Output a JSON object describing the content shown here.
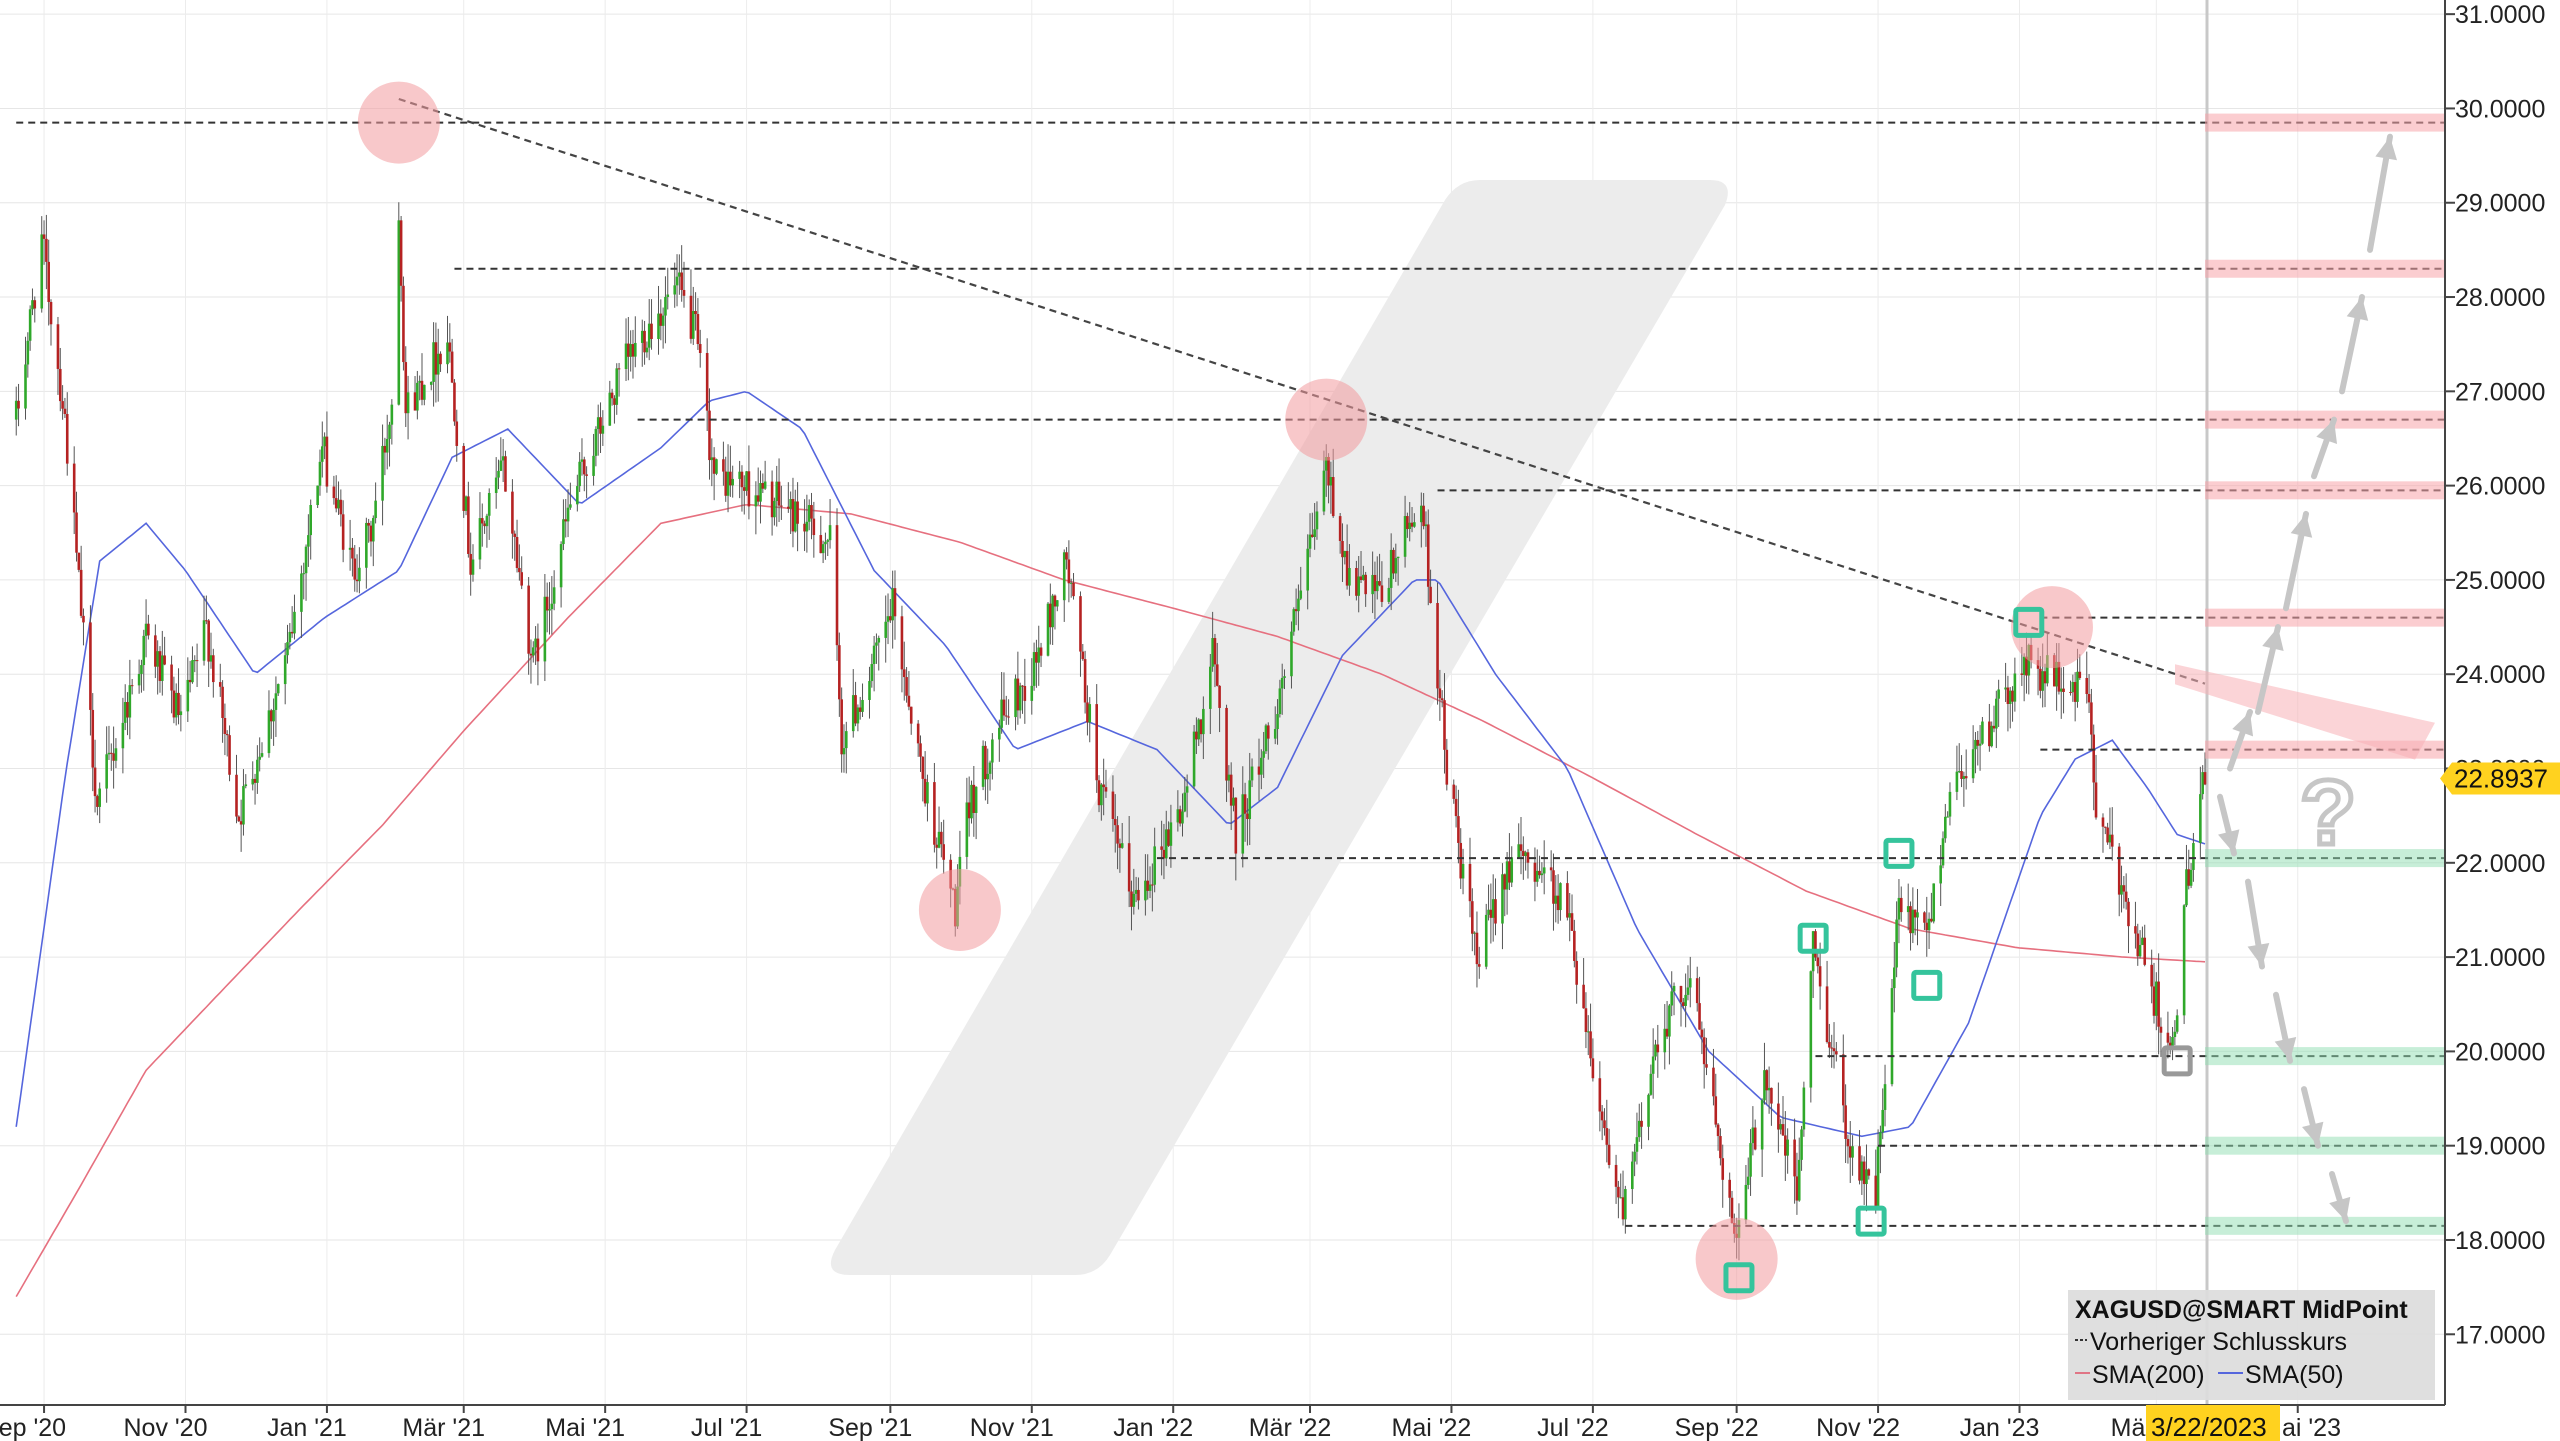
{
  "chart_data": {
    "type": "candlestick",
    "symbol": "XAGUSD@SMART MidPoint",
    "last_price": 22.8937,
    "last_price_label": "22.8937",
    "current_date_label": "3/22/2023",
    "y_range": [
      16.25,
      31.15
    ],
    "y_ticks": [
      "17.0000",
      "18.0000",
      "19.0000",
      "20.0000",
      "21.0000",
      "22.0000",
      "23.0000",
      "24.0000",
      "25.0000",
      "26.0000",
      "27.0000",
      "28.0000",
      "29.0000",
      "30.0000",
      "31.0000"
    ],
    "x_ticks": [
      "Sep '20",
      "Nov '20",
      "Jan '21",
      "Mär '21",
      "Mai '21",
      "Jul '21",
      "Sep '21",
      "Nov '21",
      "Jan '22",
      "Mär '22",
      "Mai '22",
      "Jul '22",
      "Sep '22",
      "Nov '22",
      "Jan '23",
      "Mä",
      "ai '23"
    ],
    "legend": {
      "title": "XAGUSD@SMART MidPoint",
      "prev_close": "Vorheriger Schlusskurs",
      "sma200": "SMA(200)",
      "sma50": "SMA(50)"
    },
    "price_anchors": [
      [
        "2020-08-20",
        26.7
      ],
      [
        "2020-08-31",
        28.6
      ],
      [
        "2020-09-10",
        26.7
      ],
      [
        "2020-09-24",
        22.6
      ],
      [
        "2020-10-15",
        24.4
      ],
      [
        "2020-10-30",
        23.5
      ],
      [
        "2020-11-10",
        24.5
      ],
      [
        "2020-11-24",
        22.5
      ],
      [
        "2020-12-15",
        24.2
      ],
      [
        "2020-12-30",
        26.4
      ],
      [
        "2021-01-12",
        25.1
      ],
      [
        "2021-01-20",
        25.5
      ],
      [
        "2021-01-29",
        26.9
      ],
      [
        "2021-02-01",
        29.0
      ],
      [
        "2021-02-04",
        26.8
      ],
      [
        "2021-02-22",
        27.6
      ],
      [
        "2021-03-04",
        25.2
      ],
      [
        "2021-03-18",
        26.2
      ],
      [
        "2021-03-31",
        24.1
      ],
      [
        "2021-04-16",
        25.8
      ],
      [
        "2021-05-10",
        27.3
      ],
      [
        "2021-05-20",
        27.7
      ],
      [
        "2021-06-01",
        28.1
      ],
      [
        "2021-06-09",
        27.6
      ],
      [
        "2021-06-17",
        26.1
      ],
      [
        "2021-06-30",
        26.0
      ],
      [
        "2021-07-16",
        25.8
      ],
      [
        "2021-08-06",
        25.4
      ],
      [
        "2021-08-11",
        23.3
      ],
      [
        "2021-08-25",
        24.1
      ],
      [
        "2021-09-02",
        24.7
      ],
      [
        "2021-09-15",
        22.9
      ],
      [
        "2021-09-29",
        21.5
      ],
      [
        "2021-10-05",
        22.6
      ],
      [
        "2021-10-18",
        23.5
      ],
      [
        "2021-11-01",
        24.0
      ],
      [
        "2021-11-16",
        25.2
      ],
      [
        "2021-11-30",
        22.8
      ],
      [
        "2021-12-15",
        21.6
      ],
      [
        "2022-01-05",
        22.6
      ],
      [
        "2022-01-18",
        24.2
      ],
      [
        "2022-01-28",
        22.3
      ],
      [
        "2022-02-15",
        23.7
      ],
      [
        "2022-03-01",
        25.3
      ],
      [
        "2022-03-08",
        26.2
      ],
      [
        "2022-03-18",
        25.0
      ],
      [
        "2022-03-31",
        24.8
      ],
      [
        "2022-04-18",
        25.9
      ],
      [
        "2022-04-29",
        23.0
      ],
      [
        "2022-05-12",
        20.9
      ],
      [
        "2022-05-25",
        22.0
      ],
      [
        "2022-06-08",
        22.0
      ],
      [
        "2022-06-20",
        21.5
      ],
      [
        "2022-07-05",
        19.3
      ],
      [
        "2022-07-14",
        18.2
      ],
      [
        "2022-07-29",
        20.2
      ],
      [
        "2022-08-12",
        20.8
      ],
      [
        "2022-08-25",
        19.0
      ],
      [
        "2022-09-01",
        17.9
      ],
      [
        "2022-09-13",
        19.8
      ],
      [
        "2022-09-27",
        18.5
      ],
      [
        "2022-10-04",
        21.1
      ],
      [
        "2022-10-20",
        19.0
      ],
      [
        "2022-10-31",
        18.5
      ],
      [
        "2022-11-10",
        21.5
      ],
      [
        "2022-11-22",
        21.2
      ],
      [
        "2022-12-02",
        22.8
      ],
      [
        "2022-12-15",
        23.3
      ],
      [
        "2023-01-04",
        24.1
      ],
      [
        "2023-01-20",
        23.9
      ],
      [
        "2023-01-31",
        23.8
      ],
      [
        "2023-02-03",
        22.5
      ],
      [
        "2023-02-15",
        21.7
      ],
      [
        "2023-02-28",
        20.6
      ],
      [
        "2023-03-09",
        20.0
      ],
      [
        "2023-03-14",
        21.8
      ],
      [
        "2023-03-22",
        22.89
      ]
    ],
    "sma200_anchors": [
      [
        "2020-08-20",
        17.4
      ],
      [
        "2020-09-15",
        18.5
      ],
      [
        "2020-10-15",
        19.8
      ],
      [
        "2020-11-15",
        20.6
      ],
      [
        "2020-12-20",
        21.5
      ],
      [
        "2021-01-25",
        22.4
      ],
      [
        "2021-03-01",
        23.4
      ],
      [
        "2021-04-15",
        24.6
      ],
      [
        "2021-05-25",
        25.6
      ],
      [
        "2021-07-01",
        25.8
      ],
      [
        "2021-08-15",
        25.7
      ],
      [
        "2021-10-01",
        25.4
      ],
      [
        "2021-11-15",
        25.0
      ],
      [
        "2022-01-01",
        24.7
      ],
      [
        "2022-02-15",
        24.4
      ],
      [
        "2022-04-01",
        24.0
      ],
      [
        "2022-05-15",
        23.5
      ],
      [
        "2022-07-01",
        22.9
      ],
      [
        "2022-08-15",
        22.3
      ],
      [
        "2022-10-01",
        21.7
      ],
      [
        "2022-11-15",
        21.3
      ],
      [
        "2022-12-31",
        21.1
      ],
      [
        "2023-02-15",
        21.0
      ],
      [
        "2023-03-22",
        20.95
      ]
    ],
    "sma50_anchors": [
      [
        "2020-08-20",
        19.2
      ],
      [
        "2020-09-10",
        22.9
      ],
      [
        "2020-09-25",
        25.2
      ],
      [
        "2020-10-15",
        25.6
      ],
      [
        "2020-11-01",
        25.1
      ],
      [
        "2020-12-01",
        24.0
      ],
      [
        "2020-12-31",
        24.6
      ],
      [
        "2021-02-01",
        25.1
      ],
      [
        "2021-02-24",
        26.3
      ],
      [
        "2021-03-20",
        26.6
      ],
      [
        "2021-04-20",
        25.8
      ],
      [
        "2021-05-25",
        26.4
      ],
      [
        "2021-06-15",
        26.9
      ],
      [
        "2021-07-01",
        27.0
      ],
      [
        "2021-07-25",
        26.6
      ],
      [
        "2021-08-25",
        25.1
      ],
      [
        "2021-09-25",
        24.3
      ],
      [
        "2021-10-25",
        23.2
      ],
      [
        "2021-11-25",
        23.5
      ],
      [
        "2021-12-25",
        23.2
      ],
      [
        "2022-01-25",
        22.4
      ],
      [
        "2022-02-15",
        22.8
      ],
      [
        "2022-03-15",
        24.2
      ],
      [
        "2022-04-15",
        25.0
      ],
      [
        "2022-04-25",
        25.0
      ],
      [
        "2022-05-20",
        24.0
      ],
      [
        "2022-06-20",
        23.0
      ],
      [
        "2022-07-20",
        21.3
      ],
      [
        "2022-08-20",
        20.0
      ],
      [
        "2022-09-20",
        19.3
      ],
      [
        "2022-10-25",
        19.1
      ],
      [
        "2022-11-15",
        19.2
      ],
      [
        "2022-12-10",
        20.3
      ],
      [
        "2023-01-10",
        22.5
      ],
      [
        "2023-01-25",
        23.1
      ],
      [
        "2023-02-10",
        23.3
      ],
      [
        "2023-02-25",
        22.8
      ],
      [
        "2023-03-10",
        22.3
      ],
      [
        "2023-03-22",
        22.2
      ]
    ],
    "horizontal_levels": [
      {
        "from": "2020-08-20",
        "price": 29.85
      },
      {
        "from": "2021-02-25",
        "price": 28.3
      },
      {
        "from": "2021-05-15",
        "price": 26.7
      },
      {
        "from": "2022-04-25",
        "price": 25.95
      },
      {
        "from": "2023-01-10",
        "price": 24.6
      },
      {
        "from": "2023-01-10",
        "price": 23.2
      },
      {
        "from": "2021-12-25",
        "price": 22.05
      },
      {
        "from": "2022-10-05",
        "price": 19.95
      },
      {
        "from": "2022-11-01",
        "price": 19.0
      },
      {
        "from": "2022-07-15",
        "price": 18.15
      }
    ],
    "trendline": {
      "from": [
        "2021-02-01",
        30.1
      ],
      "to": [
        "2023-03-22",
        23.9
      ]
    },
    "red_zones": [
      29.85,
      28.3,
      26.7,
      25.95,
      24.6,
      23.2
    ],
    "green_zones": [
      22.05,
      19.95,
      19.0,
      18.15
    ],
    "red_circles": [
      [
        "2021-02-01",
        29.85
      ],
      [
        "2021-10-01",
        21.5
      ],
      [
        "2022-03-08",
        26.7
      ],
      [
        "2022-09-01",
        17.8
      ],
      [
        "2023-01-15",
        24.5
      ]
    ],
    "green_squares": [
      [
        "2022-09-02",
        17.6
      ],
      [
        "2022-10-04",
        21.2
      ],
      [
        "2022-10-29",
        18.2
      ],
      [
        "2022-11-10",
        22.1
      ],
      [
        "2022-11-22",
        20.7
      ],
      [
        "2023-01-05",
        24.55
      ]
    ],
    "gray_squares": [
      [
        "2023-03-10",
        19.9
      ]
    ],
    "up_path": [
      [
        23.0,
        23.6
      ],
      [
        23.6,
        24.5
      ],
      [
        24.7,
        25.7
      ],
      [
        26.1,
        26.7
      ],
      [
        27.0,
        28.0
      ],
      [
        28.5,
        29.7
      ]
    ],
    "down_path": [
      [
        22.7,
        22.1
      ],
      [
        21.8,
        20.9
      ],
      [
        20.6,
        19.9
      ],
      [
        19.6,
        19.0
      ],
      [
        18.7,
        18.2
      ]
    ],
    "question_label": "?",
    "grid": true,
    "legend_position": "bottom-right"
  }
}
